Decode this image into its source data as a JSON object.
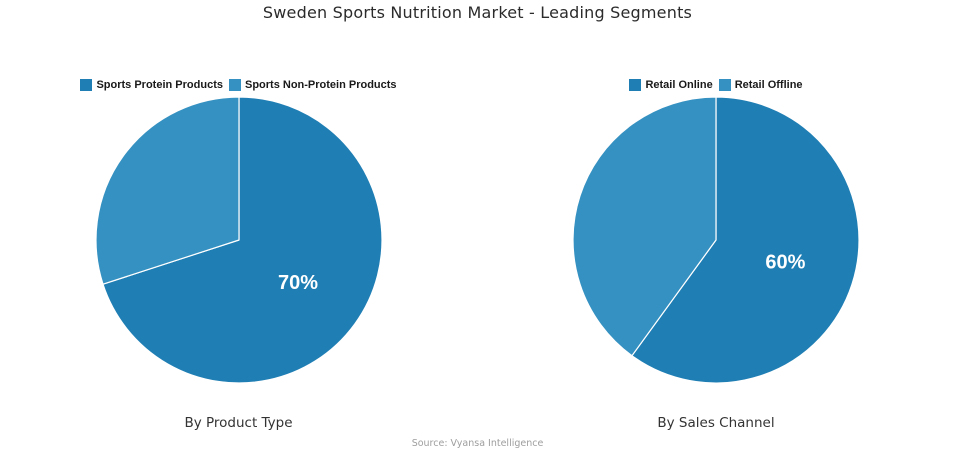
{
  "page": {
    "title": "Sweden Sports Nutrition Market - Leading Segments",
    "source": "Source: Vyansa Intelligence",
    "background": "#ffffff"
  },
  "colors": {
    "slice_primary": "#1f7eb4",
    "slice_secondary": "#3591c1",
    "data_label_text": "#ffffff",
    "legend_text": "#1a1a1a",
    "caption_text": "#333333",
    "source_text": "#9e9e9e"
  },
  "chart_data": [
    {
      "type": "pie",
      "caption": "By Product Type",
      "legend_position": "top",
      "start_angle_deg": 0,
      "direction": "clockwise",
      "slices": [
        {
          "label": "Sports Protein Products",
          "value": 70,
          "color": "#1f7eb4",
          "data_label": "70%"
        },
        {
          "label": "Sports Non-Protein Products",
          "value": 30,
          "color": "#3591c1",
          "data_label": ""
        }
      ]
    },
    {
      "type": "pie",
      "caption": "By Sales Channel",
      "legend_position": "top",
      "start_angle_deg": 0,
      "direction": "clockwise",
      "slices": [
        {
          "label": "Retail Online",
          "value": 60,
          "color": "#1f7eb4",
          "data_label": "60%"
        },
        {
          "label": "Retail Offline",
          "value": 40,
          "color": "#3591c1",
          "data_label": ""
        }
      ]
    }
  ]
}
